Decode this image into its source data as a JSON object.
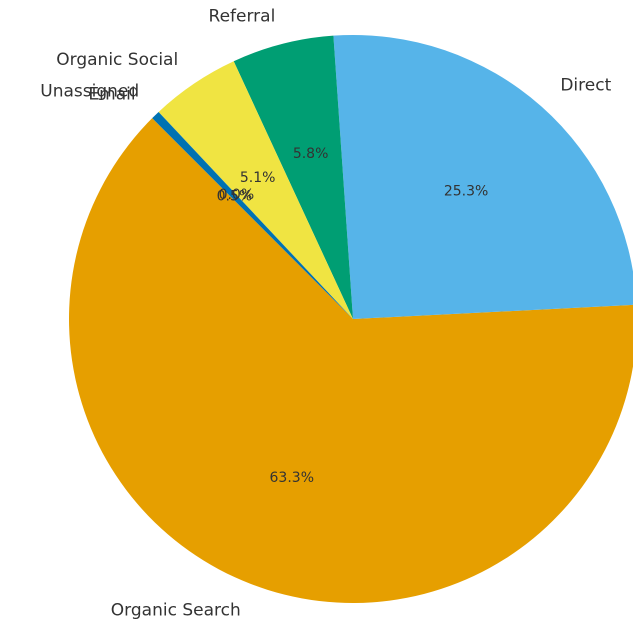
{
  "chart_data": {
    "type": "pie",
    "title": "",
    "start_angle_deg": 135,
    "direction": "counterclockwise",
    "slices": [
      {
        "label": "Organic Search",
        "value": 63.3,
        "pct_text": "63.3%",
        "color": "#E69F00"
      },
      {
        "label": "Direct",
        "value": 25.3,
        "pct_text": "25.3%",
        "color": "#56B4E9"
      },
      {
        "label": "Referral",
        "value": 5.8,
        "pct_text": "5.8%",
        "color": "#009E73"
      },
      {
        "label": "Organic Social",
        "value": 5.1,
        "pct_text": "5.1%",
        "color": "#F0E442"
      },
      {
        "label": "Unassigned",
        "value": 0.0,
        "pct_text": "0.0%",
        "color": "#0072B2"
      },
      {
        "label": "Email",
        "value": 0.5,
        "pct_text": "0.5%",
        "color": "#0072B2"
      }
    ]
  }
}
